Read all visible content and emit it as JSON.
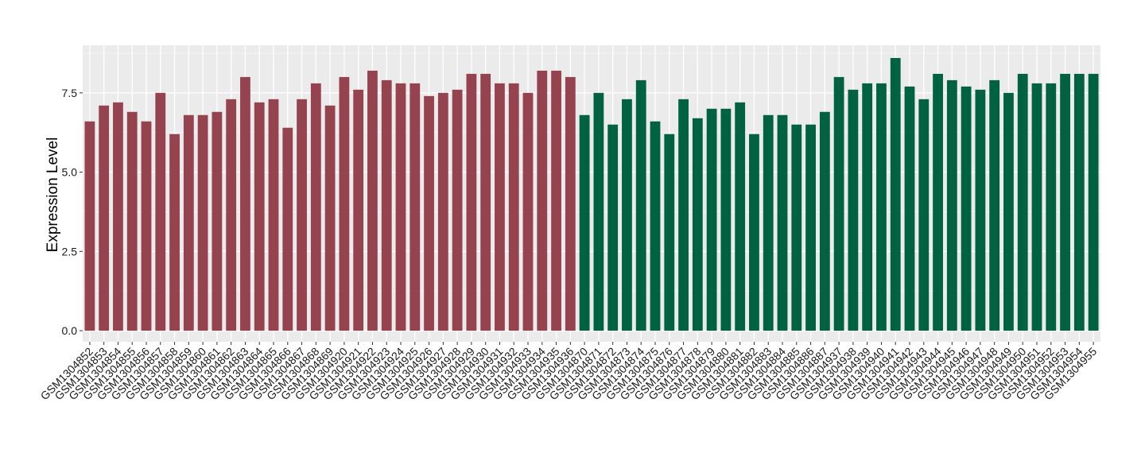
{
  "chart_data": {
    "type": "bar",
    "title": "",
    "xlabel": "",
    "ylabel": "Expression Level",
    "ylim": [
      -0.35,
      9.0
    ],
    "yticks": [
      0.0,
      2.5,
      5.0,
      7.5
    ],
    "ytick_labels": [
      "0.0",
      "2.5",
      "5.0",
      "7.5"
    ],
    "grid": true,
    "legend": "none",
    "colors": {
      "group1": "#964350",
      "group2": "#006241",
      "panel_bg": "#ebebeb",
      "grid": "#ffffff"
    },
    "categories": [
      "GSM1304852",
      "GSM1304853",
      "GSM1304854",
      "GSM1304855",
      "GSM1304856",
      "GSM1304857",
      "GSM1304858",
      "GSM1304859",
      "GSM1304860",
      "GSM1304861",
      "GSM1304862",
      "GSM1304863",
      "GSM1304864",
      "GSM1304865",
      "GSM1304866",
      "GSM1304867",
      "GSM1304868",
      "GSM1304869",
      "GSM1304920",
      "GSM1304921",
      "GSM1304922",
      "GSM1304923",
      "GSM1304924",
      "GSM1304925",
      "GSM1304926",
      "GSM1304927",
      "GSM1304928",
      "GSM1304929",
      "GSM1304930",
      "GSM1304931",
      "GSM1304932",
      "GSM1304933",
      "GSM1304934",
      "GSM1304935",
      "GSM1304936",
      "GSM1304870",
      "GSM1304871",
      "GSM1304872",
      "GSM1304873",
      "GSM1304874",
      "GSM1304875",
      "GSM1304876",
      "GSM1304877",
      "GSM1304878",
      "GSM1304879",
      "GSM1304880",
      "GSM1304881",
      "GSM1304882",
      "GSM1304883",
      "GSM1304884",
      "GSM1304885",
      "GSM1304886",
      "GSM1304887",
      "GSM1304937",
      "GSM1304938",
      "GSM1304939",
      "GSM1304940",
      "GSM1304941",
      "GSM1304942",
      "GSM1304943",
      "GSM1304944",
      "GSM1304945",
      "GSM1304946",
      "GSM1304947",
      "GSM1304948",
      "GSM1304949",
      "GSM1304950",
      "GSM1304951",
      "GSM1304952",
      "GSM1304953",
      "GSM1304954",
      "GSM1304955"
    ],
    "values": [
      6.6,
      7.1,
      7.2,
      6.9,
      6.6,
      7.5,
      6.2,
      6.8,
      6.8,
      6.9,
      7.3,
      8.0,
      7.2,
      7.3,
      6.4,
      7.3,
      7.8,
      7.1,
      8.0,
      7.6,
      8.2,
      7.9,
      7.8,
      7.8,
      7.4,
      7.5,
      7.6,
      8.1,
      8.1,
      7.8,
      7.8,
      7.5,
      8.2,
      8.2,
      8.0,
      6.8,
      7.5,
      6.5,
      7.3,
      7.9,
      6.6,
      6.2,
      7.3,
      6.7,
      7.0,
      7.0,
      7.2,
      6.2,
      6.8,
      6.8,
      6.5,
      6.5,
      6.9,
      8.0,
      7.6,
      7.8,
      7.8,
      8.6,
      7.7,
      7.3,
      8.1,
      7.9,
      7.7,
      7.6,
      7.9,
      7.5,
      8.1,
      7.8,
      7.8,
      8.1,
      8.1,
      8.1
    ],
    "groups": [
      "group1",
      "group1",
      "group1",
      "group1",
      "group1",
      "group1",
      "group1",
      "group1",
      "group1",
      "group1",
      "group1",
      "group1",
      "group1",
      "group1",
      "group1",
      "group1",
      "group1",
      "group1",
      "group1",
      "group1",
      "group1",
      "group1",
      "group1",
      "group1",
      "group1",
      "group1",
      "group1",
      "group1",
      "group1",
      "group1",
      "group1",
      "group1",
      "group1",
      "group1",
      "group1",
      "group2",
      "group2",
      "group2",
      "group2",
      "group2",
      "group2",
      "group2",
      "group2",
      "group2",
      "group2",
      "group2",
      "group2",
      "group2",
      "group2",
      "group2",
      "group2",
      "group2",
      "group2",
      "group2",
      "group2",
      "group2",
      "group2",
      "group2",
      "group2",
      "group2",
      "group2",
      "group2",
      "group2",
      "group2",
      "group2",
      "group2",
      "group2",
      "group2",
      "group2",
      "group2",
      "group2",
      "group2"
    ]
  }
}
